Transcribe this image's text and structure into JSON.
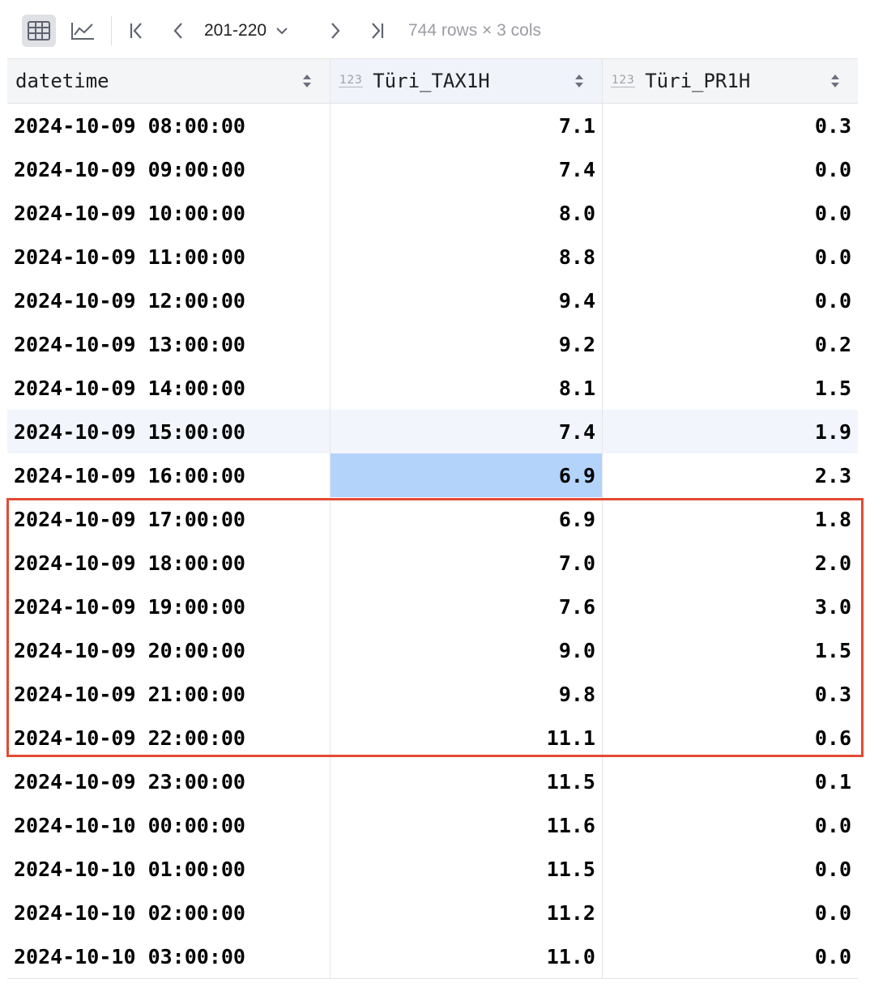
{
  "toolbar": {
    "table_view_icon": "table-grid-icon",
    "chart_view_icon": "line-chart-icon",
    "first_page_icon": "first-page-icon",
    "prev_page_icon": "chevron-left-icon",
    "page_range": "201-220",
    "next_page_icon": "chevron-right-icon",
    "last_page_icon": "last-page-icon",
    "rows_info": "744 rows × 3 cols"
  },
  "columns": [
    {
      "name": "datetime",
      "type_badge": ""
    },
    {
      "name": "Türi_TAX1H",
      "type_badge": "123"
    },
    {
      "name": "Türi_PR1H",
      "type_badge": "123"
    }
  ],
  "rows": [
    {
      "datetime": "2024-10-09 08:00:00",
      "tax": "7.1",
      "pr": "0.3"
    },
    {
      "datetime": "2024-10-09 09:00:00",
      "tax": "7.4",
      "pr": "0.0"
    },
    {
      "datetime": "2024-10-09 10:00:00",
      "tax": "8.0",
      "pr": "0.0"
    },
    {
      "datetime": "2024-10-09 11:00:00",
      "tax": "8.8",
      "pr": "0.0"
    },
    {
      "datetime": "2024-10-09 12:00:00",
      "tax": "9.4",
      "pr": "0.0"
    },
    {
      "datetime": "2024-10-09 13:00:00",
      "tax": "9.2",
      "pr": "0.2"
    },
    {
      "datetime": "2024-10-09 14:00:00",
      "tax": "8.1",
      "pr": "1.5"
    },
    {
      "datetime": "2024-10-09 15:00:00",
      "tax": "7.4",
      "pr": "1.9"
    },
    {
      "datetime": "2024-10-09 16:00:00",
      "tax": "6.9",
      "pr": "2.3"
    },
    {
      "datetime": "2024-10-09 17:00:00",
      "tax": "6.9",
      "pr": "1.8"
    },
    {
      "datetime": "2024-10-09 18:00:00",
      "tax": "7.0",
      "pr": "2.0"
    },
    {
      "datetime": "2024-10-09 19:00:00",
      "tax": "7.6",
      "pr": "3.0"
    },
    {
      "datetime": "2024-10-09 20:00:00",
      "tax": "9.0",
      "pr": "1.5"
    },
    {
      "datetime": "2024-10-09 21:00:00",
      "tax": "9.8",
      "pr": "0.3"
    },
    {
      "datetime": "2024-10-09 22:00:00",
      "tax": "11.1",
      "pr": "0.6"
    },
    {
      "datetime": "2024-10-09 23:00:00",
      "tax": "11.5",
      "pr": "0.1"
    },
    {
      "datetime": "2024-10-10 00:00:00",
      "tax": "11.6",
      "pr": "0.0"
    },
    {
      "datetime": "2024-10-10 01:00:00",
      "tax": "11.5",
      "pr": "0.0"
    },
    {
      "datetime": "2024-10-10 02:00:00",
      "tax": "11.2",
      "pr": "0.0"
    },
    {
      "datetime": "2024-10-10 03:00:00",
      "tax": "11.0",
      "pr": "0.0"
    }
  ],
  "hover_row_index": 7,
  "selected_cell": {
    "row_index": 8,
    "column": "tax"
  },
  "highlighted_rows": [
    9,
    14
  ],
  "colors": {
    "selection": "#b3d3fb",
    "hover_row": "#f2f6fc",
    "annotation_box": "#e34a33"
  }
}
